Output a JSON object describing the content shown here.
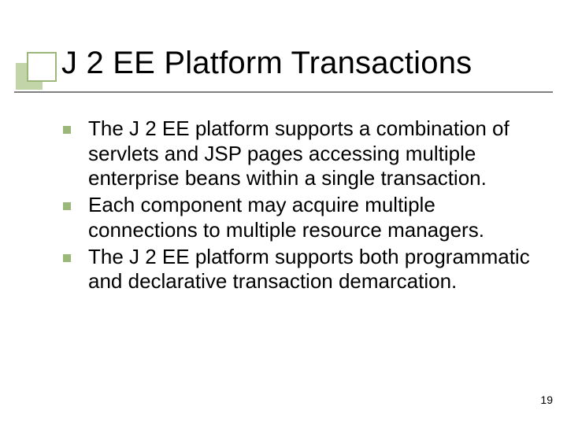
{
  "title": "J 2 EE Platform Transactions",
  "title_fontsize": 40,
  "title_color": "#000000",
  "accent_square_back": "#c2d5a8",
  "accent_square_border": "#9bb77a",
  "underline_color": "#808080",
  "bullet_color": "#9bb77a",
  "body_fontsize": 26,
  "body_color": "#000000",
  "background_color": "#ffffff",
  "bullets": [
    "The J 2 EE platform supports a combination of servlets and JSP pages accessing multiple enterprise beans within a single transaction.",
    "Each component may acquire multiple connections to multiple resource managers.",
    "The J 2 EE platform supports both programmatic and declarative transaction demarcation."
  ],
  "page_number": "19"
}
